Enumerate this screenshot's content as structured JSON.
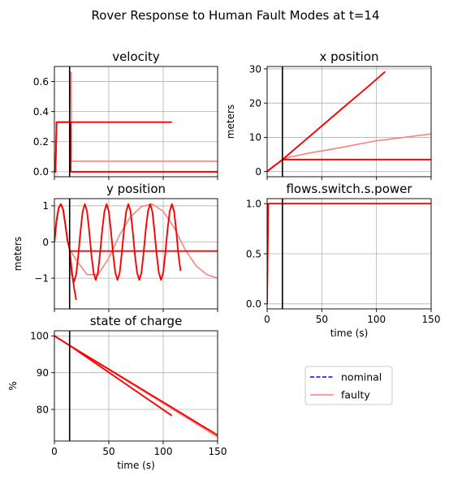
{
  "figure": {
    "title": "Rover Response to Human Fault Modes at t=14"
  },
  "legend": {
    "placement": "lower-right",
    "entries": [
      {
        "label": "nominal",
        "color": "#0000ff",
        "style": "dashed"
      },
      {
        "label": "faulty",
        "color": "#ff0000",
        "alpha": 0.5,
        "style": "solid"
      }
    ]
  },
  "fault_time": 14,
  "colors": {
    "nominal": "#0000ff",
    "faulty": "#ff0000",
    "faulty_light": "#ff8080",
    "fault_line": "#000000",
    "grid": "#b0b0b0"
  },
  "chart_data": [
    {
      "id": "velocity",
      "type": "line",
      "title": "velocity",
      "xlabel": "",
      "ylabel": "",
      "xlim": [
        0,
        150
      ],
      "ylim": [
        -0.033,
        0.7
      ],
      "xticks": [
        0,
        50,
        100,
        150
      ],
      "yticks": [
        0.0,
        0.2,
        0.4,
        0.6
      ],
      "ytick_labels": [
        "0.0",
        "0.2",
        "0.4",
        "0.6"
      ],
      "show_xtick_labels": false,
      "grid": true,
      "series": [
        {
          "style": "light",
          "points": [
            [
              0,
              0
            ],
            [
              1,
              0
            ],
            [
              2,
              0.33
            ],
            [
              14,
              0.33
            ],
            [
              14.5,
              0.66
            ],
            [
              15.5,
              0.66
            ],
            [
              15.5,
              0.07
            ],
            [
              150,
              0.07
            ]
          ]
        },
        {
          "style": "dark",
          "points": [
            [
              0,
              0
            ],
            [
              1,
              0
            ],
            [
              2,
              0.33
            ],
            [
              14,
              0.33
            ],
            [
              108,
              0.33
            ]
          ]
        },
        {
          "style": "dark",
          "points": [
            [
              0,
              0
            ],
            [
              1,
              0
            ],
            [
              2,
              0.33
            ],
            [
              14,
              0.33
            ],
            [
              15,
              0.33
            ],
            [
              15,
              0
            ],
            [
              150,
              0
            ]
          ]
        }
      ]
    },
    {
      "id": "x_position",
      "type": "line",
      "title": "x position",
      "xlabel": "",
      "ylabel": "meters",
      "xlim": [
        0,
        150
      ],
      "ylim": [
        -1.5,
        30.7
      ],
      "xticks": [
        0,
        50,
        100,
        150
      ],
      "yticks": [
        0,
        10,
        20,
        30
      ],
      "ytick_labels": [
        "0",
        "10",
        "20",
        "30"
      ],
      "show_xtick_labels": false,
      "grid": true,
      "series": [
        {
          "style": "light",
          "points": [
            [
              0,
              0
            ],
            [
              5,
              1.3
            ],
            [
              10,
              2.5
            ],
            [
              14,
              3.5
            ],
            [
              20,
              4.2
            ],
            [
              40,
              5.5
            ],
            [
              60,
              6.6
            ],
            [
              80,
              7.8
            ],
            [
              100,
              9.0
            ],
            [
              120,
              9.8
            ],
            [
              150,
              11.0
            ]
          ]
        },
        {
          "style": "dark",
          "points": [
            [
              0,
              0
            ],
            [
              5,
              1.3
            ],
            [
              10,
              2.5
            ],
            [
              14,
              3.5
            ],
            [
              40,
              10.6
            ],
            [
              70,
              18.8
            ],
            [
              90,
              24.2
            ],
            [
              108,
              29.2
            ]
          ]
        },
        {
          "style": "dark",
          "points": [
            [
              0,
              0
            ],
            [
              5,
              1.3
            ],
            [
              10,
              2.5
            ],
            [
              14,
              3.5
            ],
            [
              150,
              3.5
            ]
          ]
        }
      ]
    },
    {
      "id": "y_position",
      "type": "line",
      "title": "y position",
      "xlabel": "",
      "ylabel": "meters",
      "xlim": [
        0,
        150
      ],
      "ylim": [
        -1.85,
        1.2
      ],
      "xticks": [
        0,
        50,
        100,
        150
      ],
      "yticks": [
        -1,
        0,
        1
      ],
      "ytick_labels": [
        "−1",
        "0",
        "1"
      ],
      "show_xtick_labels": false,
      "grid": true,
      "series": [
        {
          "style": "light",
          "points": [
            [
              0,
              0
            ],
            [
              2,
              0.6
            ],
            [
              4,
              0.95
            ],
            [
              6,
              1.05
            ],
            [
              8,
              0.9
            ],
            [
              10,
              0.5
            ],
            [
              12,
              0.05
            ],
            [
              14,
              -0.2
            ],
            [
              20,
              -0.5
            ],
            [
              30,
              -0.9
            ],
            [
              40,
              -0.9
            ],
            [
              50,
              -0.45
            ],
            [
              60,
              0.2
            ],
            [
              70,
              0.7
            ],
            [
              80,
              0.98
            ],
            [
              90,
              1.05
            ],
            [
              100,
              0.85
            ],
            [
              110,
              0.4
            ],
            [
              120,
              -0.2
            ],
            [
              130,
              -0.65
            ],
            [
              140,
              -0.9
            ],
            [
              150,
              -1.0
            ]
          ]
        },
        {
          "style": "dark",
          "points": [
            [
              0,
              0
            ],
            [
              2,
              0.6
            ],
            [
              4,
              0.95
            ],
            [
              6,
              1.05
            ],
            [
              8,
              0.9
            ],
            [
              10,
              0.5
            ],
            [
              12,
              0.05
            ],
            [
              14,
              -0.2
            ],
            [
              16,
              -0.9
            ],
            [
              18,
              -1.1
            ],
            [
              20,
              -0.9
            ],
            [
              22,
              -0.35
            ],
            [
              24,
              0.3
            ],
            [
              26,
              0.85
            ],
            [
              28,
              1.05
            ],
            [
              30,
              0.85
            ],
            [
              32,
              0.3
            ],
            [
              34,
              -0.35
            ],
            [
              36,
              -0.85
            ],
            [
              38,
              -1.05
            ],
            [
              40,
              -0.85
            ],
            [
              42,
              -0.3
            ],
            [
              44,
              0.35
            ],
            [
              46,
              0.85
            ],
            [
              48,
              1.05
            ],
            [
              50,
              0.85
            ],
            [
              52,
              0.3
            ],
            [
              54,
              -0.35
            ],
            [
              56,
              -0.85
            ],
            [
              58,
              -1.05
            ],
            [
              60,
              -0.85
            ],
            [
              62,
              -0.3
            ],
            [
              64,
              0.35
            ],
            [
              66,
              0.85
            ],
            [
              68,
              1.05
            ],
            [
              70,
              0.85
            ],
            [
              72,
              0.3
            ],
            [
              74,
              -0.35
            ],
            [
              76,
              -0.85
            ],
            [
              78,
              -1.05
            ],
            [
              80,
              -0.85
            ],
            [
              82,
              -0.3
            ],
            [
              84,
              0.35
            ],
            [
              86,
              0.85
            ],
            [
              88,
              1.05
            ],
            [
              90,
              0.85
            ],
            [
              92,
              0.3
            ],
            [
              94,
              -0.35
            ],
            [
              96,
              -0.85
            ],
            [
              98,
              -1.05
            ],
            [
              100,
              -0.85
            ],
            [
              102,
              -0.3
            ],
            [
              104,
              0.35
            ],
            [
              106,
              0.85
            ],
            [
              108,
              1.05
            ],
            [
              110,
              0.85
            ],
            [
              112,
              0.3
            ],
            [
              114,
              -0.35
            ],
            [
              116,
              -0.8
            ]
          ]
        },
        {
          "style": "dark",
          "points": [
            [
              0,
              0
            ],
            [
              2,
              0.6
            ],
            [
              4,
              0.95
            ],
            [
              6,
              1.05
            ],
            [
              8,
              0.9
            ],
            [
              10,
              0.5
            ],
            [
              12,
              0.05
            ],
            [
              14,
              -0.2
            ],
            [
              16,
              -0.8
            ],
            [
              18,
              -1.25
            ],
            [
              20,
              -1.6
            ]
          ]
        },
        {
          "style": "dark",
          "points": [
            [
              14,
              -0.25
            ],
            [
              150,
              -0.25
            ]
          ]
        }
      ]
    },
    {
      "id": "flows_switch_s_power",
      "type": "line",
      "title": "flows.switch.s.power",
      "xlabel": "time (s)",
      "ylabel": "",
      "xlim": [
        0,
        150
      ],
      "ylim": [
        -0.05,
        1.05
      ],
      "xticks": [
        0,
        50,
        100,
        150
      ],
      "yticks": [
        0.0,
        0.5,
        1.0
      ],
      "ytick_labels": [
        "0.0",
        "0.5",
        "1.0"
      ],
      "show_xtick_labels": true,
      "xtick_labels": [
        "0",
        "50",
        "100",
        "150"
      ],
      "grid": true,
      "series": [
        {
          "style": "light",
          "points": [
            [
              0,
              0
            ],
            [
              0.3,
              0.3
            ],
            [
              1,
              1.0
            ],
            [
              150,
              1.0
            ]
          ]
        },
        {
          "style": "dark",
          "points": [
            [
              0,
              0
            ],
            [
              0.3,
              0.3
            ],
            [
              1,
              1.0
            ],
            [
              150,
              1.0
            ]
          ]
        }
      ]
    },
    {
      "id": "state_of_charge",
      "type": "line",
      "title": "state of charge",
      "xlabel": "time (s)",
      "ylabel": "%",
      "xlim": [
        0,
        150
      ],
      "ylim": [
        71.4,
        101.4
      ],
      "xticks": [
        0,
        50,
        100,
        150
      ],
      "yticks": [
        80,
        90,
        100
      ],
      "ytick_labels": [
        "80",
        "90",
        "100"
      ],
      "show_xtick_labels": true,
      "xtick_labels": [
        "0",
        "50",
        "100",
        "150"
      ],
      "grid": true,
      "series": [
        {
          "style": "light",
          "points": [
            [
              0,
              100
            ],
            [
              150,
              72.5
            ]
          ]
        },
        {
          "style": "dark",
          "points": [
            [
              0,
              100
            ],
            [
              14,
              97.4
            ],
            [
              150,
              73.0
            ]
          ]
        },
        {
          "style": "dark",
          "points": [
            [
              0,
              100
            ],
            [
              14,
              97.4
            ],
            [
              108,
              78.3
            ]
          ]
        }
      ]
    }
  ]
}
